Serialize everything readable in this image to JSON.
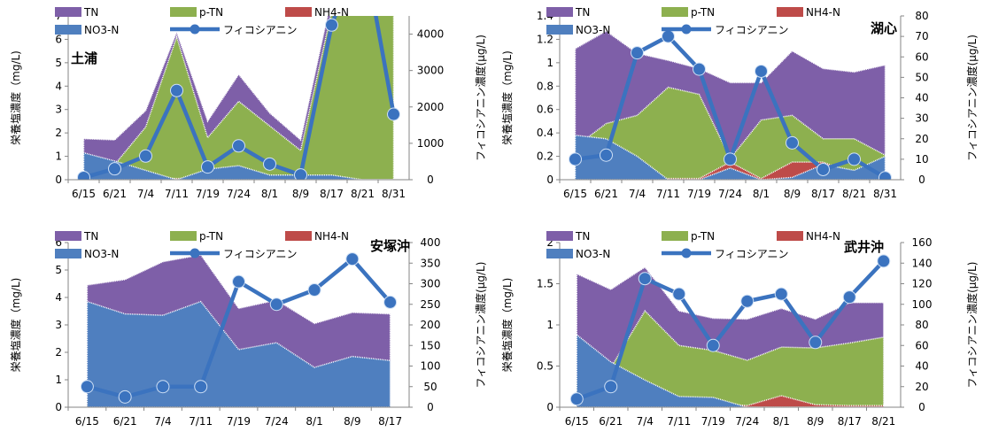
{
  "colors": {
    "TN": "#7E5FA8",
    "p-TN": "#8DB04F",
    "NH4-N": "#BE4B49",
    "NO3-N": "#4F7FBF",
    "phyco": "#3B73BF"
  },
  "legend": [
    "TN",
    "p-TN",
    "NH4-N",
    "NO3-N",
    "フィコシアニン"
  ],
  "ylabel_left": "栄養塩濃度（mg/L)",
  "ylabel_right": "フィコシアニン濃度(μg/L)",
  "chart_data": [
    {
      "type": "area",
      "title": "土浦",
      "categories": [
        "6/15",
        "6/21",
        "7/4",
        "7/11",
        "7/19",
        "7/24",
        "8/1",
        "8/9",
        "8/17",
        "8/21",
        "8/31"
      ],
      "ylim": [
        0,
        7
      ],
      "yticks": [
        0,
        1,
        2,
        3,
        4,
        5,
        6,
        7
      ],
      "y2lim": [
        0,
        4500
      ],
      "y2ticks": [
        0,
        1000,
        2000,
        3000,
        4000
      ],
      "series": [
        {
          "name": "NO3-N",
          "axis": "left",
          "values": [
            1.15,
            0.8,
            0.4,
            0.0,
            0.45,
            0.6,
            0.2,
            0.2,
            0.2,
            0.0,
            0.0
          ]
        },
        {
          "name": "NH4-N",
          "axis": "left",
          "values": [
            0.05,
            0.05,
            0.05,
            0.05,
            0.05,
            0.1,
            0.05,
            0.05,
            0.05,
            0.0,
            0.0
          ]
        },
        {
          "name": "p-TN",
          "axis": "left",
          "values": [
            0.5,
            0.65,
            2.25,
            6.1,
            1.8,
            3.35,
            2.3,
            1.25,
            7.2,
            7.3,
            7.1
          ]
        },
        {
          "name": "TN",
          "axis": "left",
          "values": [
            1.75,
            1.7,
            2.95,
            6.3,
            2.5,
            4.5,
            2.85,
            1.7,
            7.8,
            7.8,
            7.5
          ]
        },
        {
          "name": "フィコシアニン",
          "axis": "right",
          "values": [
            60,
            300,
            650,
            2450,
            350,
            930,
            430,
            130,
            4250,
            6500,
            1800
          ]
        }
      ]
    },
    {
      "type": "area",
      "title": "湖心",
      "categories": [
        "6/15",
        "6/21",
        "7/4",
        "7/11",
        "7/19",
        "7/24",
        "8/1",
        "8/9",
        "8/17",
        "8/21",
        "8/31"
      ],
      "ylim": [
        0,
        1.4
      ],
      "yticks": [
        0,
        0.2,
        0.4,
        0.6,
        0.8,
        1,
        1.2,
        1.4
      ],
      "y2lim": [
        0,
        80
      ],
      "y2ticks": [
        0,
        10,
        20,
        30,
        40,
        50,
        60,
        70,
        80
      ],
      "series": [
        {
          "name": "NO3-N",
          "axis": "left",
          "values": [
            0.38,
            0.35,
            0.2,
            0.0,
            0.0,
            0.1,
            0.0,
            0.02,
            0.13,
            0.08,
            0.2
          ]
        },
        {
          "name": "NH4-N",
          "axis": "left",
          "values": [
            0.08,
            0.05,
            0.0,
            0.01,
            0.01,
            0.15,
            0.01,
            0.15,
            0.15,
            0.05,
            0.17
          ]
        },
        {
          "name": "p-TN",
          "axis": "left",
          "values": [
            0.28,
            0.48,
            0.55,
            0.79,
            0.73,
            0.18,
            0.51,
            0.55,
            0.35,
            0.35,
            0.21
          ]
        },
        {
          "name": "TN",
          "axis": "left",
          "values": [
            1.12,
            1.27,
            1.08,
            1.02,
            0.95,
            0.83,
            0.83,
            1.1,
            0.95,
            0.92,
            0.98
          ]
        },
        {
          "name": "フィコシアニン",
          "axis": "right",
          "values": [
            10,
            12,
            62,
            70,
            54,
            10,
            53,
            18,
            5,
            10,
            1
          ]
        }
      ]
    },
    {
      "type": "area",
      "title": "安塚沖",
      "categories": [
        "6/15",
        "6/21",
        "7/4",
        "7/11",
        "7/19",
        "7/24",
        "8/1",
        "8/9",
        "8/17"
      ],
      "ylim": [
        0,
        6
      ],
      "yticks": [
        0,
        1,
        2,
        3,
        4,
        5,
        6
      ],
      "y2lim": [
        0,
        400
      ],
      "y2ticks": [
        0,
        50,
        100,
        150,
        200,
        250,
        300,
        350,
        400
      ],
      "series": [
        {
          "name": "NO3-N",
          "axis": "left",
          "values": [
            3.85,
            3.4,
            3.35,
            3.85,
            2.1,
            2.35,
            1.45,
            1.85,
            1.7
          ]
        },
        {
          "name": "NH4-N",
          "axis": "left",
          "values": [
            0.25,
            0.05,
            0.05,
            0.1,
            0.05,
            0.05,
            0.05,
            0.05,
            0.05
          ]
        },
        {
          "name": "p-TN",
          "axis": "left",
          "values": [
            0.35,
            0.65,
            1.1,
            1.0,
            1.0,
            1.25,
            1.25,
            1.25,
            0.1
          ]
        },
        {
          "name": "TN",
          "axis": "left",
          "values": [
            4.45,
            4.65,
            5.3,
            5.55,
            3.6,
            3.9,
            3.05,
            3.45,
            3.4
          ]
        },
        {
          "name": "フィコシアニン",
          "axis": "right",
          "values": [
            50,
            25,
            50,
            50,
            305,
            250,
            285,
            360,
            255
          ]
        }
      ]
    },
    {
      "type": "area",
      "title": "武井沖",
      "categories": [
        "6/15",
        "6/21",
        "7/4",
        "7/11",
        "7/19",
        "7/24",
        "8/1",
        "8/9",
        "8/17",
        "8/21"
      ],
      "ylim": [
        0,
        2
      ],
      "yticks": [
        0,
        0.5,
        1,
        1.5,
        2
      ],
      "y2lim": [
        0,
        160
      ],
      "y2ticks": [
        0,
        20,
        40,
        60,
        80,
        100,
        120,
        140,
        160
      ],
      "series": [
        {
          "name": "NO3-N",
          "axis": "left",
          "values": [
            0.88,
            0.55,
            0.33,
            0.13,
            0.12,
            0.0,
            0.0,
            0.0,
            0.0,
            0.0
          ]
        },
        {
          "name": "NH4-N",
          "axis": "left",
          "values": [
            0.15,
            0.05,
            0.02,
            0.02,
            0.05,
            0.02,
            0.14,
            0.03,
            0.02,
            0.02
          ]
        },
        {
          "name": "p-TN",
          "axis": "left",
          "values": [
            0.3,
            0.48,
            1.17,
            0.75,
            0.69,
            0.57,
            0.73,
            0.72,
            0.78,
            0.85
          ]
        },
        {
          "name": "TN",
          "axis": "left",
          "values": [
            1.62,
            1.43,
            1.7,
            1.17,
            1.08,
            1.07,
            1.2,
            1.07,
            1.27,
            1.27
          ]
        },
        {
          "name": "フィコシアニン",
          "axis": "right",
          "values": [
            8,
            20,
            125,
            110,
            60,
            103,
            110,
            63,
            107,
            142
          ]
        }
      ]
    }
  ]
}
